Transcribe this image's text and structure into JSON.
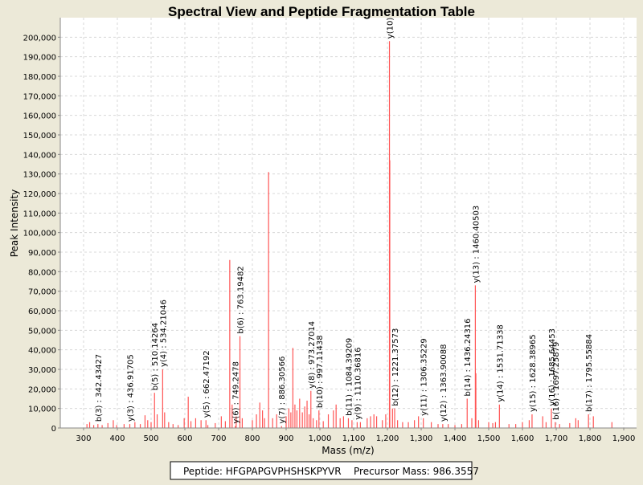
{
  "chart_data": {
    "type": "spectrum",
    "title": "Spectral View and Peptide Fragmentation Table",
    "x_label": "Mass (m/z)",
    "y_label": "Peak Intensity",
    "color": "#ff5555",
    "grid": true,
    "xlim": [
      231,
      1938
    ],
    "ylim": [
      0,
      210000
    ],
    "xticks": [
      300,
      400,
      500,
      600,
      700,
      800,
      900,
      {
        "value": 1000,
        "label": "1,000"
      },
      {
        "value": 1100,
        "label": "1,100"
      },
      {
        "value": 1200,
        "label": "1,200"
      },
      {
        "value": 1300,
        "label": "1,300"
      },
      {
        "value": 1400,
        "label": "1,400"
      },
      {
        "value": 1500,
        "label": "1,500"
      },
      {
        "value": 1600,
        "label": "1,600"
      },
      {
        "value": 1700,
        "label": "1,700"
      },
      {
        "value": 1800,
        "label": "1,800"
      },
      {
        "value": 1900,
        "label": "1,900"
      }
    ],
    "yticks": [
      0,
      {
        "value": 10000,
        "label": "10,000"
      },
      {
        "value": 20000,
        "label": "20,000"
      },
      {
        "value": 30000,
        "label": "30,000"
      },
      {
        "value": 40000,
        "label": "40,000"
      },
      {
        "value": 50000,
        "label": "50,000"
      },
      {
        "value": 60000,
        "label": "60,000"
      },
      {
        "value": 70000,
        "label": "70,000"
      },
      {
        "value": 80000,
        "label": "80,000"
      },
      {
        "value": 90000,
        "label": "90,000"
      },
      {
        "value": 100000,
        "label": "100,000"
      },
      {
        "value": 110000,
        "label": "110,000"
      },
      {
        "value": 120000,
        "label": "120,000"
      },
      {
        "value": 130000,
        "label": "130,000"
      },
      {
        "value": 140000,
        "label": "140,000"
      },
      {
        "value": 150000,
        "label": "150,000"
      },
      {
        "value": 160000,
        "label": "160,000"
      },
      {
        "value": 170000,
        "label": "170,000"
      },
      {
        "value": 180000,
        "label": "180,000"
      },
      {
        "value": 190000,
        "label": "190,000"
      },
      {
        "value": 200000,
        "label": "200,000"
      }
    ],
    "x": [
      310,
      318,
      330,
      355,
      372,
      388,
      398,
      420,
      452,
      468,
      482,
      490,
      500,
      518,
      540,
      552,
      565,
      580,
      598,
      610,
      618,
      632,
      648,
      668,
      690,
      708,
      720,
      733,
      740,
      752,
      770,
      800,
      812,
      822,
      830,
      836,
      848,
      860,
      872,
      900,
      908,
      914,
      920,
      926,
      932,
      940,
      948,
      955,
      962,
      968,
      980,
      990,
      1010,
      1025,
      1040,
      1048,
      1060,
      1070,
      1095,
      1120,
      1140,
      1150,
      1160,
      1168,
      1185,
      1195,
      1207,
      1215,
      1230,
      1245,
      1262,
      1280,
      1292,
      1330,
      1350,
      1380,
      1400,
      1420,
      1450,
      1462,
      1470,
      1500,
      1512,
      1520,
      1560,
      1580,
      1600,
      1620,
      1660,
      1670,
      1710,
      1740,
      1758,
      1765,
      1810,
      1865
    ],
    "values": [
      2000,
      3000,
      1500,
      1500,
      2500,
      4000,
      1500,
      2000,
      3000,
      2000,
      6500,
      4000,
      3000,
      7000,
      8000,
      3000,
      2000,
      1500,
      5000,
      16000,
      3500,
      5000,
      4000,
      1500,
      2500,
      6000,
      3500,
      86000,
      12000,
      6000,
      5000,
      4000,
      7000,
      13000,
      9000,
      5000,
      131000,
      5000,
      7000,
      6000,
      10000,
      8000,
      41000,
      12000,
      9000,
      15000,
      8000,
      11000,
      14000,
      7000,
      5000,
      4000,
      3500,
      7000,
      9000,
      12000,
      5000,
      6000,
      4000,
      3000,
      5000,
      6000,
      7000,
      6000,
      4000,
      7000,
      137000,
      10000,
      4000,
      3000,
      3000,
      4000,
      6000,
      3000,
      2000,
      2000,
      1500,
      2000,
      5000,
      28000,
      4000,
      3000,
      2500,
      3000,
      2000,
      2000,
      3000,
      4000,
      6000,
      3000,
      2000,
      2500,
      5000,
      4000,
      6000,
      3000
    ],
    "annotations": [
      {
        "text": "b(3) : 342.43427",
        "x": 342.43427,
        "y": 2000
      },
      {
        "text": "y(3) : 436.91705",
        "x": 436.91705,
        "y": 2000
      },
      {
        "text": "b(5) : 510.14264",
        "x": 510.14264,
        "y": 18000
      },
      {
        "text": "y(4) : 534.21046",
        "x": 534.21046,
        "y": 30000
      },
      {
        "text": "y(5) : 662.47192",
        "x": 662.47192,
        "y": 4000
      },
      {
        "text": "y(6) : 749.2478",
        "x": 749.2478,
        "y": 1000
      },
      {
        "text": "b(6) : 763.19482",
        "x": 763.19482,
        "y": 47000
      },
      {
        "text": "y(7) : 886.30566",
        "x": 886.30566,
        "y": 1000
      },
      {
        "text": "y(8) : 973.27014",
        "x": 973.27014,
        "y": 19000
      },
      {
        "text": "b(10) : 997.11438",
        "x": 997.11438,
        "y": 9000
      },
      {
        "text": "b(11) : 1084.39209",
        "x": 1084.39209,
        "y": 5000
      },
      {
        "text": "y(9) : 1110.36816",
        "x": 1110.36816,
        "y": 3000
      },
      {
        "text": "y(10)",
        "x": 1206,
        "y": 198000
      },
      {
        "text": "b(12) : 1221.37573",
        "x": 1221.37573,
        "y": 10000
      },
      {
        "text": "y(11) : 1306.35229",
        "x": 1306.35229,
        "y": 5000
      },
      {
        "text": "y(12) : 1363.90088",
        "x": 1363.90088,
        "y": 2000
      },
      {
        "text": "b(14) : 1436.24316",
        "x": 1436.24316,
        "y": 15000
      },
      {
        "text": "y(13) : 1460.40503",
        "x": 1460.40503,
        "y": 73000
      },
      {
        "text": "y(14) : 1531.71338",
        "x": 1531.71338,
        "y": 12000
      },
      {
        "text": "y(15) : 1628.38965",
        "x": 1628.38965,
        "y": 7000
      },
      {
        "text": "y(16) : 1685.64453",
        "x": 1685.64453,
        "y": 10000
      },
      {
        "text": "b(16) : 1697.25879",
        "x": 1697.25879,
        "y": 3000
      },
      {
        "text": "b(17) : 1795.55884",
        "x": 1795.55884,
        "y": 7000
      }
    ],
    "peptide_label": "Peptide: HFGPAPGVPHSHSKPYVR",
    "precursor_label": "Precursor Mass: 986.3557"
  }
}
